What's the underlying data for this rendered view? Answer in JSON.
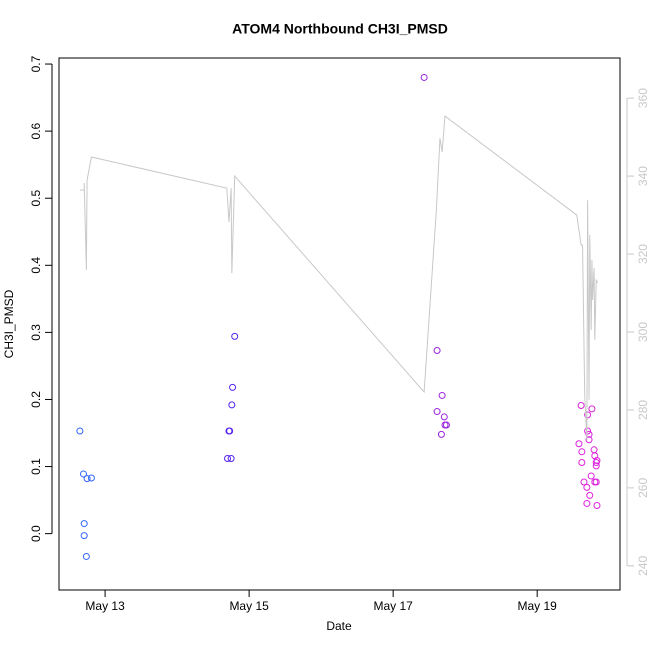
{
  "chart_data": {
    "type": "scatter",
    "title": "ATOM4 Northbound CH3I_PMSD",
    "x_label": "Date",
    "y_label": "CH3I_PMSD",
    "xlim": [
      12.36,
      20.15
    ],
    "xticks": [
      {
        "value": 13,
        "label": "May 13"
      },
      {
        "value": 15,
        "label": "May 15"
      },
      {
        "value": 17,
        "label": "May 17"
      },
      {
        "value": 19,
        "label": "May 19"
      }
    ],
    "ylim": [
      -0.084,
      0.709
    ],
    "yticks": [
      {
        "value": 0,
        "label": "0.0"
      },
      0.1,
      0.2,
      0.3,
      0.4,
      0.5,
      0.6,
      0.7
    ],
    "y2lim": [
      233.8,
      370.3
    ],
    "y2ticks": [
      240,
      260,
      280,
      300,
      320,
      340,
      360
    ],
    "series": [
      {
        "color": "#3366ff",
        "x": [
          12.65,
          12.7,
          12.75,
          12.81,
          12.71,
          12.71,
          12.74
        ],
        "values": [
          0.153,
          0.089,
          0.082,
          0.083,
          0.015,
          -0.003,
          -0.034
        ]
      },
      {
        "color": "#5522ee",
        "x": [
          14.7,
          14.75,
          14.72,
          14.73,
          14.76,
          14.77,
          14.8
        ],
        "values": [
          0.112,
          0.112,
          0.153,
          0.153,
          0.192,
          0.218,
          0.294
        ]
      },
      {
        "color": "#9922dd",
        "x": [
          17.43,
          17.61,
          17.68,
          17.61,
          17.71,
          17.72,
          17.74,
          17.67
        ],
        "values": [
          0.68,
          0.273,
          0.206,
          0.182,
          0.174,
          0.162,
          0.162,
          0.148
        ]
      },
      {
        "color": "#dd22dd",
        "x": [
          19.61,
          19.58,
          19.62,
          19.62,
          19.65,
          19.69,
          19.69,
          19.7,
          19.7,
          19.72,
          19.72,
          19.76,
          19.75,
          19.73,
          19.79,
          19.8,
          19.82,
          19.82,
          19.83,
          19.8,
          19.82,
          19.83
        ],
        "values": [
          0.191,
          0.134,
          0.122,
          0.106,
          0.077,
          0.069,
          0.045,
          0.177,
          0.153,
          0.148,
          0.14,
          0.186,
          0.086,
          0.057,
          0.125,
          0.116,
          0.106,
          0.101,
          0.109,
          0.077,
          0.077,
          0.042
        ]
      },
      {
        "type": "line",
        "axis": "y2",
        "color": "#c8c8c8",
        "x": [
          12.65,
          12.71,
          12.71,
          12.74,
          12.75,
          12.81,
          14.69,
          14.72,
          14.75,
          14.76,
          14.8,
          17.43,
          17.6,
          17.65,
          17.68,
          17.72,
          19.55,
          19.61,
          19.63,
          19.66,
          19.69,
          19.7,
          19.72,
          19.73,
          19.75,
          19.76,
          19.77,
          19.79,
          19.8,
          19.82,
          19.84
        ],
        "values": [
          336.4,
          336.4,
          338.2,
          315.9,
          339.0,
          344.9,
          336.9,
          328.2,
          336.9,
          315.1,
          340.0,
          284.6,
          331.3,
          349.7,
          346.2,
          355.4,
          330.0,
          322.3,
          322.3,
          283.8,
          272.3,
          333.8,
          282.6,
          324.9,
          300.5,
          318.5,
          308.2,
          316.4,
          298.0,
          313.3,
          312.6
        ]
      }
    ]
  }
}
